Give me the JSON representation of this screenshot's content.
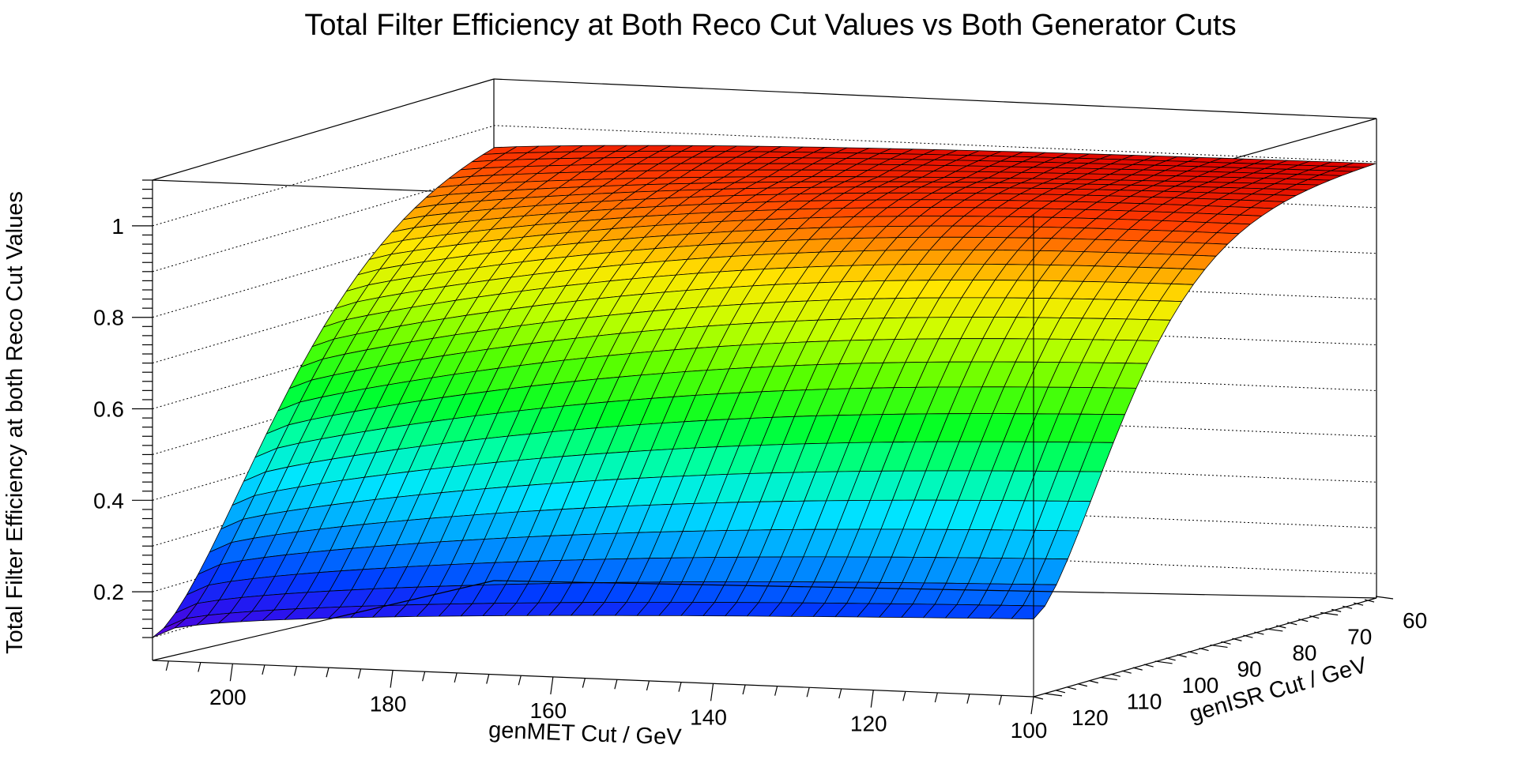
{
  "chart_data": {
    "type": "surface",
    "title": "Total Filter Efficiency at Both Reco Cut Values vs Both Generator Cuts",
    "xlabel": "genMET Cut / GeV",
    "ylabel": "genISR Cut / GeV",
    "zlabel": "Total Filter Efficiency at both Reco Cut Values",
    "x_ticks": [
      "200",
      "180",
      "160",
      "140",
      "120",
      "100"
    ],
    "x_tick_values": [
      200,
      180,
      160,
      140,
      120,
      100
    ],
    "y_ticks": [
      "120",
      "110",
      "100",
      "90",
      "80",
      "70",
      "60"
    ],
    "y_tick_values": [
      120,
      110,
      100,
      90,
      80,
      70,
      60
    ],
    "z_ticks": [
      "0.2",
      "0.4",
      "0.6",
      "0.8",
      "1"
    ],
    "z_tick_values": [
      0.2,
      0.4,
      0.6,
      0.8,
      1.0
    ],
    "xlim": [
      210,
      100
    ],
    "ylim": [
      122,
      60
    ],
    "zlim": [
      0.05,
      1.1
    ],
    "grid": true,
    "colormap": "rainbow",
    "grid_size": [
      40,
      30
    ],
    "corner_values": {
      "genMET_210_genISR_122": 0.1,
      "genMET_100_genISR_122": 0.22,
      "genMET_210_genISR_60": 1.0,
      "genMET_100_genISR_60": 1.0
    }
  }
}
